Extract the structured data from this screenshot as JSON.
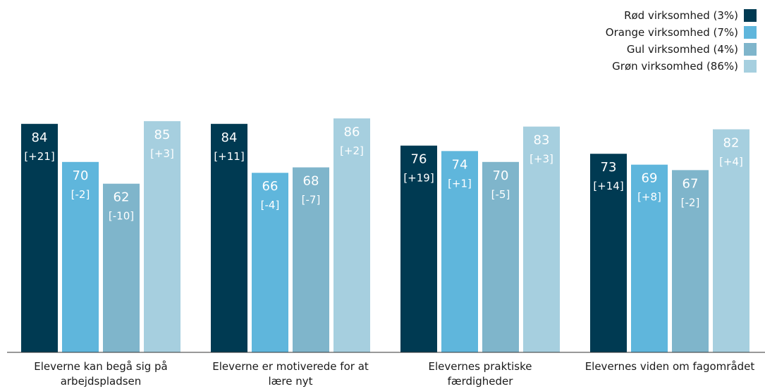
{
  "chart_data": {
    "type": "bar",
    "categories": [
      [
        "Eleverne kan begå sig på",
        "arbejdspladsen"
      ],
      [
        "Eleverne er motiverede for at",
        "lære nyt"
      ],
      [
        "Elevernes praktiske",
        "færdigheder"
      ],
      [
        "Elevernes viden om fagområdet"
      ]
    ],
    "series": [
      {
        "name": "Rød virksomhed (3%)",
        "color": "#003a52",
        "values": [
          84,
          84,
          76,
          73
        ],
        "labels": [
          "[+21]",
          "[+11]",
          "[+19]",
          "[+14]"
        ]
      },
      {
        "name": "Orange virksomhed (7%)",
        "color": "#5fb6dc",
        "values": [
          70,
          66,
          74,
          69
        ],
        "labels": [
          "[-2]",
          "[-4]",
          "[+1]",
          "[+8]"
        ]
      },
      {
        "name": "Gul virksomhed (4%)",
        "color": "#7fb5cb",
        "values": [
          62,
          68,
          70,
          67
        ],
        "labels": [
          "[-10]",
          "[-7]",
          "[-5]",
          "[-2]"
        ]
      },
      {
        "name": "Grøn virksomhed (86%)",
        "color": "#a6cfdf",
        "values": [
          85,
          86,
          83,
          82
        ],
        "labels": [
          "[+3]",
          "[+2]",
          "[+3]",
          "[+4]"
        ]
      }
    ],
    "ylim": [
      0,
      100
    ],
    "grid": false,
    "legend_position": "top-right",
    "xlabel": "",
    "ylabel": ""
  }
}
